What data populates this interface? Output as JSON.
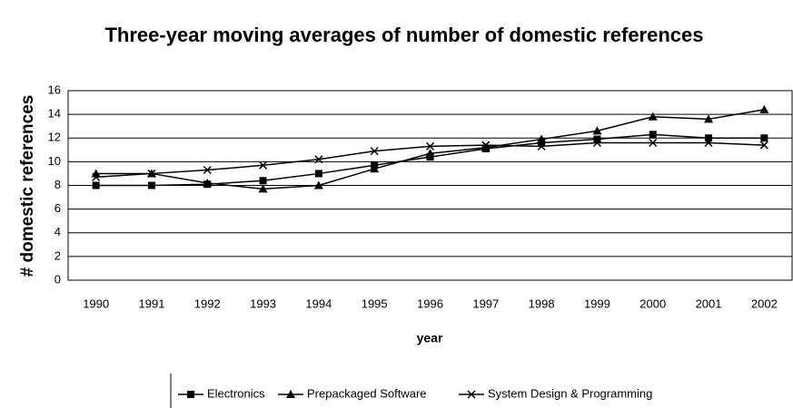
{
  "chart_data": {
    "type": "line",
    "title": "Three-year moving averages of number of domestic references",
    "x_label": "year",
    "y_label": "# domestic references",
    "categories": [
      "1990",
      "1991",
      "1992",
      "1993",
      "1994",
      "1995",
      "1996",
      "1997",
      "1998",
      "1999",
      "2000",
      "2001",
      "2002"
    ],
    "series": [
      {
        "name": "Electronics",
        "color": "#000000",
        "marker": "square",
        "values": [
          8.0,
          8.0,
          8.1,
          8.4,
          9.0,
          9.7,
          10.4,
          11.1,
          11.6,
          11.9,
          12.3,
          12.0,
          12.0
        ]
      },
      {
        "name": "Prepackaged Software",
        "color": "#000000",
        "marker": "triangle",
        "values": [
          9.0,
          9.0,
          8.2,
          7.7,
          8.0,
          9.4,
          10.7,
          11.2,
          11.9,
          12.6,
          13.8,
          13.6,
          14.4
        ]
      },
      {
        "name": "System Design & Programming",
        "color": "#000000",
        "marker": "x",
        "values": [
          8.7,
          9.0,
          9.3,
          9.7,
          10.2,
          10.9,
          11.3,
          11.4,
          11.3,
          11.6,
          11.6,
          11.6,
          11.4
        ]
      }
    ],
    "ylim": [
      0,
      16
    ],
    "yticks": [
      0,
      2,
      4,
      6,
      8,
      10,
      12,
      14,
      16
    ],
    "grid": true,
    "legend": "bottom"
  }
}
